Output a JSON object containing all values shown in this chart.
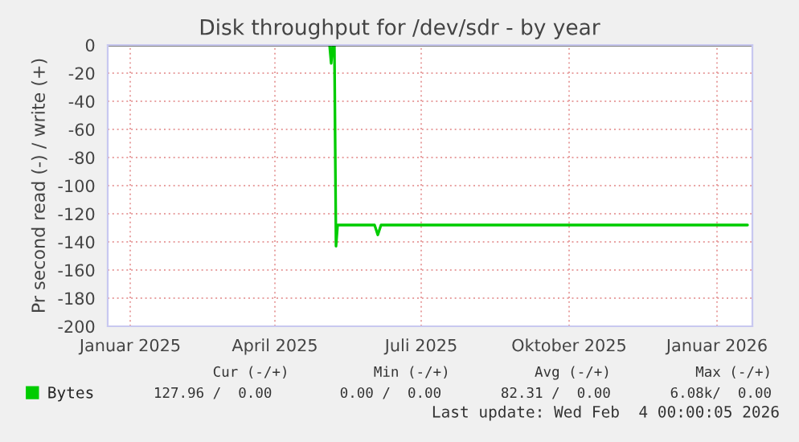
{
  "chart_data": {
    "type": "line",
    "title": "Disk throughput for /dev/sdr - by year",
    "ylabel": "Pr second read (-) / write (+)",
    "x": [
      "2025-05-05",
      "2025-05-06",
      "2025-05-07",
      "2025-05-08",
      "2025-05-09",
      "2025-05-10",
      "2025-06-02",
      "2025-06-04",
      "2025-06-06",
      "2026-01-20"
    ],
    "series": [
      {
        "name": "Bytes",
        "color": "#00cc00",
        "values": [
          0,
          -13,
          0,
          0,
          -143,
          -128,
          -128,
          -135,
          -128,
          -128
        ]
      }
    ],
    "xlim": [
      "2024-12-18",
      "2026-01-23"
    ],
    "xticks": [
      {
        "value": "2025-01-01",
        "label": "Januar 2025"
      },
      {
        "value": "2025-04-01",
        "label": "April 2025"
      },
      {
        "value": "2025-07-01",
        "label": "Juli 2025"
      },
      {
        "value": "2025-10-01",
        "label": "Oktober 2025"
      },
      {
        "value": "2026-01-01",
        "label": "Januar 2026"
      }
    ],
    "ylim": [
      -200,
      0
    ],
    "yticks": [
      -200,
      -180,
      -160,
      -140,
      -120,
      -100,
      -80,
      -60,
      -40,
      -20,
      0
    ],
    "ref_lines": [
      {
        "axis": "y",
        "value": 0,
        "color": "#000000"
      }
    ],
    "grid": true,
    "legend": "bottom left",
    "annotations": [
      "              Cur (-/+)          Min (-/+)          Avg (-/+)          Max (-/+)",
      "127.96 /  0.00        0.00 /  0.00       82.31 /  0.00       6.08k/  0.00",
      "Last update: Wed Feb  4 00:00:05 2026"
    ]
  }
}
